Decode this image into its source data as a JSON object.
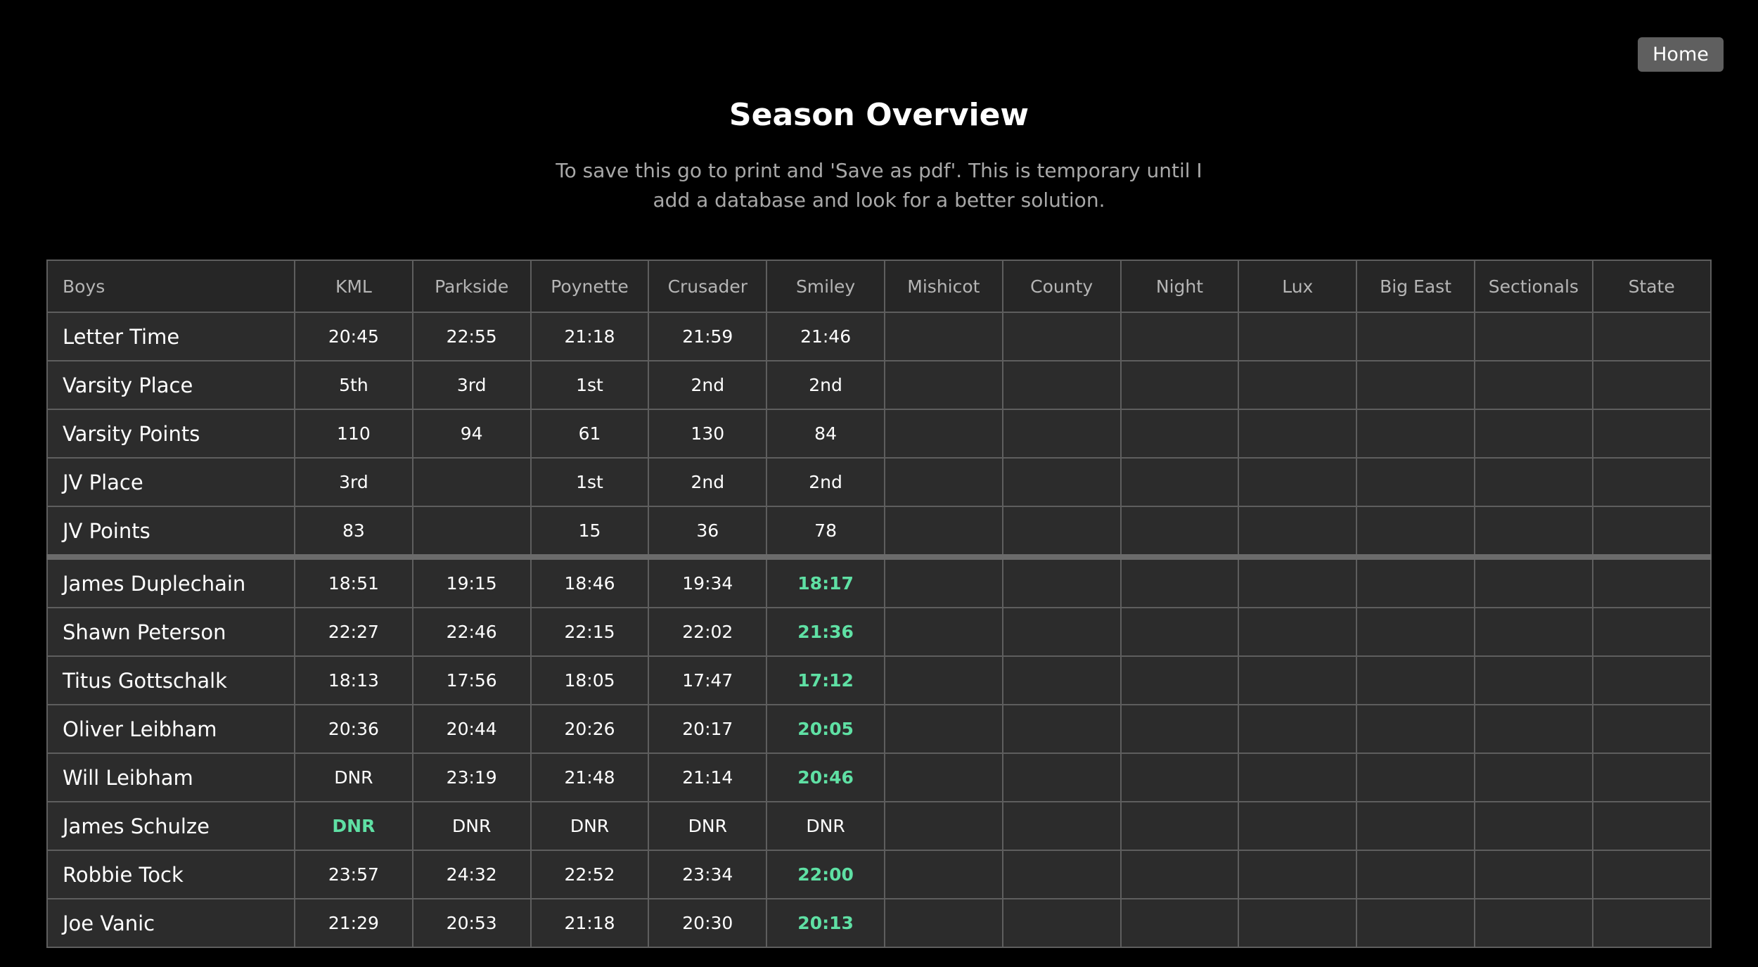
{
  "header": {
    "home_label": "Home",
    "title": "Season Overview",
    "subtitle": "To save this go to print and 'Save as pdf'. This is temporary until I add a database and look for a better solution."
  },
  "colors": {
    "background": "#000000",
    "table_background": "#2c2c2c",
    "best_time": "#5fe0a4",
    "home_button": "#5f5f5f"
  },
  "table": {
    "columns": [
      "Boys",
      "KML",
      "Parkside",
      "Poynette",
      "Crusader",
      "Smiley",
      "Mishicot",
      "County",
      "Night",
      "Lux",
      "Big East",
      "Sectionals",
      "State"
    ],
    "summary_rows": [
      {
        "label": "Letter Time",
        "values": [
          "20:45",
          "22:55",
          "21:18",
          "21:59",
          "21:46",
          "",
          "",
          "",
          "",
          "",
          "",
          ""
        ]
      },
      {
        "label": "Varsity Place",
        "values": [
          "5th",
          "3rd",
          "1st",
          "2nd",
          "2nd",
          "",
          "",
          "",
          "",
          "",
          "",
          ""
        ]
      },
      {
        "label": "Varsity Points",
        "values": [
          "110",
          "94",
          "61",
          "130",
          "84",
          "",
          "",
          "",
          "",
          "",
          "",
          ""
        ]
      },
      {
        "label": "JV Place",
        "values": [
          "3rd",
          "",
          "1st",
          "2nd",
          "2nd",
          "",
          "",
          "",
          "",
          "",
          "",
          ""
        ]
      },
      {
        "label": "JV Points",
        "values": [
          "83",
          "",
          "15",
          "36",
          "78",
          "",
          "",
          "",
          "",
          "",
          "",
          ""
        ]
      }
    ],
    "runner_rows": [
      {
        "label": "James Duplechain",
        "values": [
          "18:51",
          "19:15",
          "18:46",
          "19:34",
          "18:17",
          "",
          "",
          "",
          "",
          "",
          "",
          ""
        ],
        "best_index": 4
      },
      {
        "label": "Shawn Peterson",
        "values": [
          "22:27",
          "22:46",
          "22:15",
          "22:02",
          "21:36",
          "",
          "",
          "",
          "",
          "",
          "",
          ""
        ],
        "best_index": 4
      },
      {
        "label": "Titus Gottschalk",
        "values": [
          "18:13",
          "17:56",
          "18:05",
          "17:47",
          "17:12",
          "",
          "",
          "",
          "",
          "",
          "",
          ""
        ],
        "best_index": 4
      },
      {
        "label": "Oliver Leibham",
        "values": [
          "20:36",
          "20:44",
          "20:26",
          "20:17",
          "20:05",
          "",
          "",
          "",
          "",
          "",
          "",
          ""
        ],
        "best_index": 4
      },
      {
        "label": "Will Leibham",
        "values": [
          "DNR",
          "23:19",
          "21:48",
          "21:14",
          "20:46",
          "",
          "",
          "",
          "",
          "",
          "",
          ""
        ],
        "best_index": 4
      },
      {
        "label": "James Schulze",
        "values": [
          "DNR",
          "DNR",
          "DNR",
          "DNR",
          "DNR",
          "",
          "",
          "",
          "",
          "",
          "",
          ""
        ],
        "best_index": 0
      },
      {
        "label": "Robbie Tock",
        "values": [
          "23:57",
          "24:32",
          "22:52",
          "23:34",
          "22:00",
          "",
          "",
          "",
          "",
          "",
          "",
          ""
        ],
        "best_index": 4
      },
      {
        "label": "Joe Vanic",
        "values": [
          "21:29",
          "20:53",
          "21:18",
          "20:30",
          "20:13",
          "",
          "",
          "",
          "",
          "",
          "",
          ""
        ],
        "best_index": 4
      }
    ]
  }
}
